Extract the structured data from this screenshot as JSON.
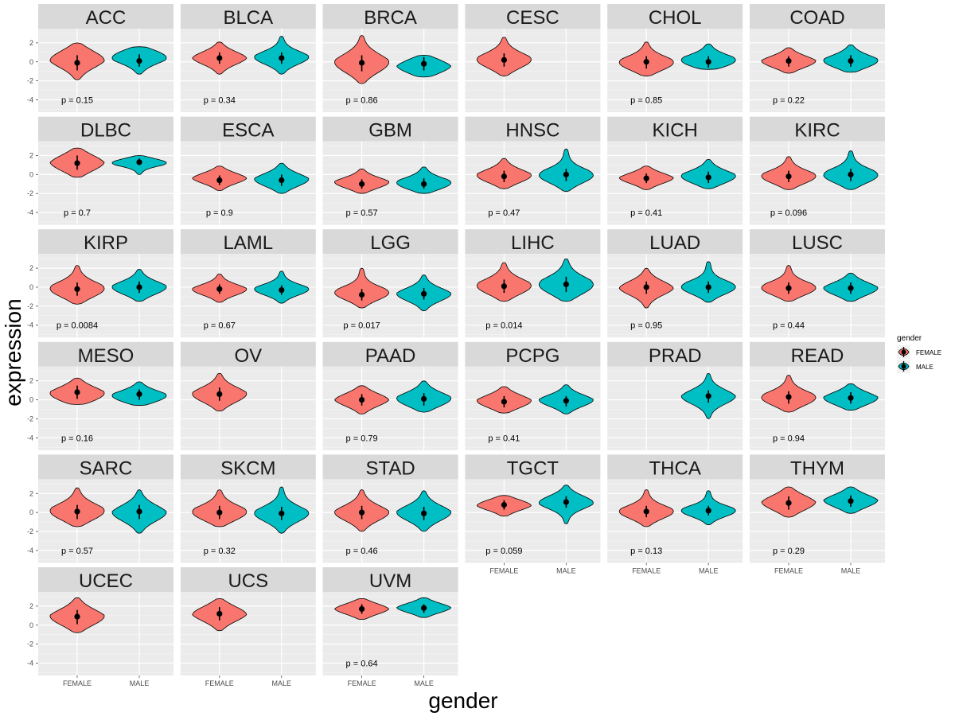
{
  "chart_data": {
    "type": "violin",
    "xlabel": "gender",
    "ylabel": "expression",
    "categories": [
      "FEMALE",
      "MALE"
    ],
    "y_ticks": [
      2,
      0,
      -2,
      -4
    ],
    "ylim": [
      -5.3,
      3.5
    ],
    "legend": {
      "title": "gender",
      "position": "right",
      "entries": [
        {
          "label": "FEMALE",
          "color": "#F8766D"
        },
        {
          "label": "MALE",
          "color": "#00BFC4"
        }
      ]
    },
    "colors": {
      "female": "#F8766D",
      "male": "#00BFC4",
      "strip": "#d9d9d9",
      "panel": "#ebebeb"
    },
    "panels": [
      {
        "name": "ACC",
        "p": "p = 0.15",
        "female": {
          "median": -0.1,
          "q1": -0.9,
          "q3": 0.7,
          "min": -1.9,
          "max": 2.0,
          "peak": 0.3
        },
        "male": {
          "median": 0.1,
          "q1": -0.5,
          "q3": 0.8,
          "min": -1.3,
          "max": 1.6,
          "peak": 0.6
        }
      },
      {
        "name": "BLCA",
        "p": "p = 0.34",
        "female": {
          "median": 0.4,
          "q1": -0.2,
          "q3": 1.0,
          "min": -1.3,
          "max": 2.1,
          "peak": 0.4
        },
        "male": {
          "median": 0.4,
          "q1": -0.2,
          "q3": 1.0,
          "min": -1.3,
          "max": 2.7,
          "peak": 0.4
        }
      },
      {
        "name": "BRCA",
        "p": "p = 0.86",
        "female": {
          "median": -0.1,
          "q1": -1.0,
          "q3": 0.7,
          "min": -2.3,
          "max": 2.8,
          "peak": -0.2
        },
        "male": {
          "median": -0.2,
          "q1": -0.9,
          "q3": 0.5,
          "min": -1.6,
          "max": 0.7,
          "peak": -0.5
        }
      },
      {
        "name": "CESC",
        "p": "",
        "female": {
          "median": 0.2,
          "q1": -0.5,
          "q3": 0.9,
          "min": -1.5,
          "max": 2.6,
          "peak": 0.1
        },
        "male": null
      },
      {
        "name": "CHOL",
        "p": "p = 0.85",
        "female": {
          "median": 0.0,
          "q1": -0.7,
          "q3": 0.6,
          "min": -1.5,
          "max": 2.1,
          "peak": -0.2
        },
        "male": {
          "median": 0.0,
          "q1": -0.6,
          "q3": 0.6,
          "min": -0.8,
          "max": 1.9,
          "peak": 0.0
        }
      },
      {
        "name": "COAD",
        "p": "p = 0.22",
        "female": {
          "median": 0.1,
          "q1": -0.5,
          "q3": 0.6,
          "min": -1.2,
          "max": 1.5,
          "peak": 0.0
        },
        "male": {
          "median": 0.1,
          "q1": -0.5,
          "q3": 0.7,
          "min": -1.1,
          "max": 1.8,
          "peak": 0.0
        }
      },
      {
        "name": "DLBC",
        "p": "p = 0.7",
        "female": {
          "median": 1.2,
          "q1": 0.5,
          "q3": 2.0,
          "min": -0.3,
          "max": 2.8,
          "peak": 1.2
        },
        "male": {
          "median": 1.3,
          "q1": 1.0,
          "q3": 1.7,
          "min": 0.0,
          "max": 2.0,
          "peak": 1.3
        }
      },
      {
        "name": "ESCA",
        "p": "p = 0.9",
        "female": {
          "median": -0.6,
          "q1": -1.1,
          "q3": -0.1,
          "min": -1.7,
          "max": 0.9,
          "peak": -0.4
        },
        "male": {
          "median": -0.6,
          "q1": -1.2,
          "q3": 0.0,
          "min": -2.0,
          "max": 1.2,
          "peak": -0.6
        }
      },
      {
        "name": "GBM",
        "p": "p = 0.57",
        "female": {
          "median": -1.0,
          "q1": -1.5,
          "q3": -0.5,
          "min": -2.0,
          "max": 0.6,
          "peak": -0.9
        },
        "male": {
          "median": -1.0,
          "q1": -1.5,
          "q3": -0.4,
          "min": -2.0,
          "max": 0.8,
          "peak": -1.0
        }
      },
      {
        "name": "HNSC",
        "p": "p = 0.47",
        "female": {
          "median": -0.2,
          "q1": -0.8,
          "q3": 0.4,
          "min": -1.5,
          "max": 1.7,
          "peak": -0.2
        },
        "male": {
          "median": 0.0,
          "q1": -0.7,
          "q3": 0.6,
          "min": -1.8,
          "max": 2.7,
          "peak": -0.2
        }
      },
      {
        "name": "KICH",
        "p": "p = 0.41",
        "female": {
          "median": -0.4,
          "q1": -0.9,
          "q3": 0.1,
          "min": -1.6,
          "max": 0.9,
          "peak": -0.4
        },
        "male": {
          "median": -0.3,
          "q1": -0.9,
          "q3": 0.3,
          "min": -1.5,
          "max": 1.6,
          "peak": -0.3
        }
      },
      {
        "name": "KIRC",
        "p": "p = 0.096",
        "female": {
          "median": -0.2,
          "q1": -0.8,
          "q3": 0.4,
          "min": -1.6,
          "max": 1.9,
          "peak": -0.3
        },
        "male": {
          "median": 0.0,
          "q1": -0.7,
          "q3": 0.6,
          "min": -1.6,
          "max": 2.5,
          "peak": -0.2
        }
      },
      {
        "name": "KIRP",
        "p": "p = 0.0084",
        "female": {
          "median": -0.2,
          "q1": -0.9,
          "q3": 0.5,
          "min": -1.8,
          "max": 2.3,
          "peak": -0.3
        },
        "male": {
          "median": 0.0,
          "q1": -0.6,
          "q3": 0.6,
          "min": -1.5,
          "max": 1.9,
          "peak": -0.1
        }
      },
      {
        "name": "LAML",
        "p": "p = 0.67",
        "female": {
          "median": -0.2,
          "q1": -0.7,
          "q3": 0.3,
          "min": -1.6,
          "max": 1.4,
          "peak": -0.3
        },
        "male": {
          "median": -0.3,
          "q1": -0.8,
          "q3": 0.2,
          "min": -1.7,
          "max": 1.7,
          "peak": -0.3
        }
      },
      {
        "name": "LGG",
        "p": "p = 0.017",
        "female": {
          "median": -0.8,
          "q1": -1.4,
          "q3": -0.2,
          "min": -2.2,
          "max": 2.0,
          "peak": -0.7
        },
        "male": {
          "median": -0.7,
          "q1": -1.3,
          "q3": -0.1,
          "min": -2.5,
          "max": 1.3,
          "peak": -0.8
        }
      },
      {
        "name": "LIHC",
        "p": "p = 0.014",
        "female": {
          "median": 0.1,
          "q1": -0.6,
          "q3": 0.8,
          "min": -1.5,
          "max": 2.6,
          "peak": 0.0
        },
        "male": {
          "median": 0.3,
          "q1": -0.5,
          "q3": 1.1,
          "min": -1.5,
          "max": 3.0,
          "peak": 0.1
        }
      },
      {
        "name": "LUAD",
        "p": "p = 0.95",
        "female": {
          "median": 0.0,
          "q1": -0.7,
          "q3": 0.6,
          "min": -2.2,
          "max": 2.0,
          "peak": -0.1
        },
        "male": {
          "median": 0.0,
          "q1": -0.6,
          "q3": 0.6,
          "min": -1.6,
          "max": 2.7,
          "peak": -0.1
        }
      },
      {
        "name": "LUSC",
        "p": "p = 0.44",
        "female": {
          "median": -0.1,
          "q1": -0.7,
          "q3": 0.5,
          "min": -1.5,
          "max": 2.3,
          "peak": -0.2
        },
        "male": {
          "median": -0.1,
          "q1": -0.7,
          "q3": 0.5,
          "min": -1.5,
          "max": 1.5,
          "peak": -0.2
        }
      },
      {
        "name": "MESO",
        "p": "p = 0.16",
        "female": {
          "median": 0.8,
          "q1": 0.1,
          "q3": 1.5,
          "min": -0.5,
          "max": 2.3,
          "peak": 0.5
        },
        "male": {
          "median": 0.6,
          "q1": 0.0,
          "q3": 1.1,
          "min": -0.6,
          "max": 1.9,
          "peak": 0.3
        }
      },
      {
        "name": "OV",
        "p": "",
        "female": {
          "median": 0.6,
          "q1": -0.1,
          "q3": 1.3,
          "min": -1.2,
          "max": 2.8,
          "peak": 0.5
        },
        "male": null
      },
      {
        "name": "PAAD",
        "p": "p = 0.79",
        "female": {
          "median": 0.0,
          "q1": -0.6,
          "q3": 0.6,
          "min": -1.5,
          "max": 1.5,
          "peak": 0.0
        },
        "male": {
          "median": 0.1,
          "q1": -0.6,
          "q3": 0.7,
          "min": -1.3,
          "max": 2.0,
          "peak": 0.0
        }
      },
      {
        "name": "PCPG",
        "p": "p = 0.41",
        "female": {
          "median": -0.2,
          "q1": -0.8,
          "q3": 0.4,
          "min": -1.4,
          "max": 1.4,
          "peak": -0.2
        },
        "male": {
          "median": -0.1,
          "q1": -0.7,
          "q3": 0.4,
          "min": -1.5,
          "max": 1.6,
          "peak": -0.1
        }
      },
      {
        "name": "PRAD",
        "p": "",
        "female": null,
        "male": {
          "median": 0.4,
          "q1": -0.3,
          "q3": 1.0,
          "min": -2.0,
          "max": 2.8,
          "peak": 0.3
        }
      },
      {
        "name": "READ",
        "p": "p = 0.94",
        "female": {
          "median": 0.3,
          "q1": -0.4,
          "q3": 0.9,
          "min": -1.3,
          "max": 2.6,
          "peak": 0.1
        },
        "male": {
          "median": 0.2,
          "q1": -0.4,
          "q3": 0.8,
          "min": -1.1,
          "max": 1.7,
          "peak": 0.1
        }
      },
      {
        "name": "SARC",
        "p": "p = 0.57",
        "female": {
          "median": 0.1,
          "q1": -0.7,
          "q3": 0.8,
          "min": -1.5,
          "max": 2.6,
          "peak": 0.0
        },
        "male": {
          "median": 0.1,
          "q1": -0.7,
          "q3": 0.8,
          "min": -2.2,
          "max": 2.4,
          "peak": -0.1
        }
      },
      {
        "name": "SKCM",
        "p": "p = 0.32",
        "female": {
          "median": 0.0,
          "q1": -0.7,
          "q3": 0.7,
          "min": -1.5,
          "max": 2.4,
          "peak": -0.1
        },
        "male": {
          "median": -0.1,
          "q1": -0.8,
          "q3": 0.6,
          "min": -2.2,
          "max": 2.7,
          "peak": -0.2
        }
      },
      {
        "name": "STAD",
        "p": "p = 0.46",
        "female": {
          "median": 0.0,
          "q1": -0.7,
          "q3": 0.7,
          "min": -2.0,
          "max": 2.4,
          "peak": -0.1
        },
        "male": {
          "median": -0.1,
          "q1": -0.8,
          "q3": 0.6,
          "min": -2.0,
          "max": 2.3,
          "peak": -0.1
        }
      },
      {
        "name": "TGCT",
        "p": "p = 0.059",
        "female": {
          "median": 0.8,
          "q1": 0.3,
          "q3": 1.3,
          "min": -0.4,
          "max": 1.8,
          "peak": 0.8
        },
        "male": {
          "median": 1.1,
          "q1": 0.5,
          "q3": 1.7,
          "min": -1.2,
          "max": 2.9,
          "peak": 1.1
        }
      },
      {
        "name": "THCA",
        "p": "p = 0.13",
        "female": {
          "median": 0.1,
          "q1": -0.5,
          "q3": 0.7,
          "min": -1.5,
          "max": 2.4,
          "peak": 0.0
        },
        "male": {
          "median": 0.2,
          "q1": -0.3,
          "q3": 0.7,
          "min": -1.3,
          "max": 2.3,
          "peak": 0.1
        }
      },
      {
        "name": "THYM",
        "p": "p = 0.29",
        "female": {
          "median": 1.0,
          "q1": 0.3,
          "q3": 1.7,
          "min": -0.5,
          "max": 2.7,
          "peak": 1.0
        },
        "male": {
          "median": 1.2,
          "q1": 0.6,
          "q3": 1.8,
          "min": -0.1,
          "max": 2.7,
          "peak": 1.2
        }
      },
      {
        "name": "UCEC",
        "p": "",
        "female": {
          "median": 0.9,
          "q1": 0.1,
          "q3": 1.6,
          "min": -0.8,
          "max": 2.9,
          "peak": 0.8
        },
        "male": null
      },
      {
        "name": "UCS",
        "p": "",
        "female": {
          "median": 1.2,
          "q1": 0.5,
          "q3": 1.9,
          "min": -0.6,
          "max": 2.8,
          "peak": 1.2
        },
        "male": null
      },
      {
        "name": "UVM",
        "p": "p = 0.64",
        "female": {
          "median": 1.7,
          "q1": 1.2,
          "q3": 2.2,
          "min": 0.6,
          "max": 2.8,
          "peak": 1.7
        },
        "male": {
          "median": 1.8,
          "q1": 1.3,
          "q3": 2.2,
          "min": 0.8,
          "max": 2.9,
          "peak": 1.8
        }
      }
    ]
  }
}
